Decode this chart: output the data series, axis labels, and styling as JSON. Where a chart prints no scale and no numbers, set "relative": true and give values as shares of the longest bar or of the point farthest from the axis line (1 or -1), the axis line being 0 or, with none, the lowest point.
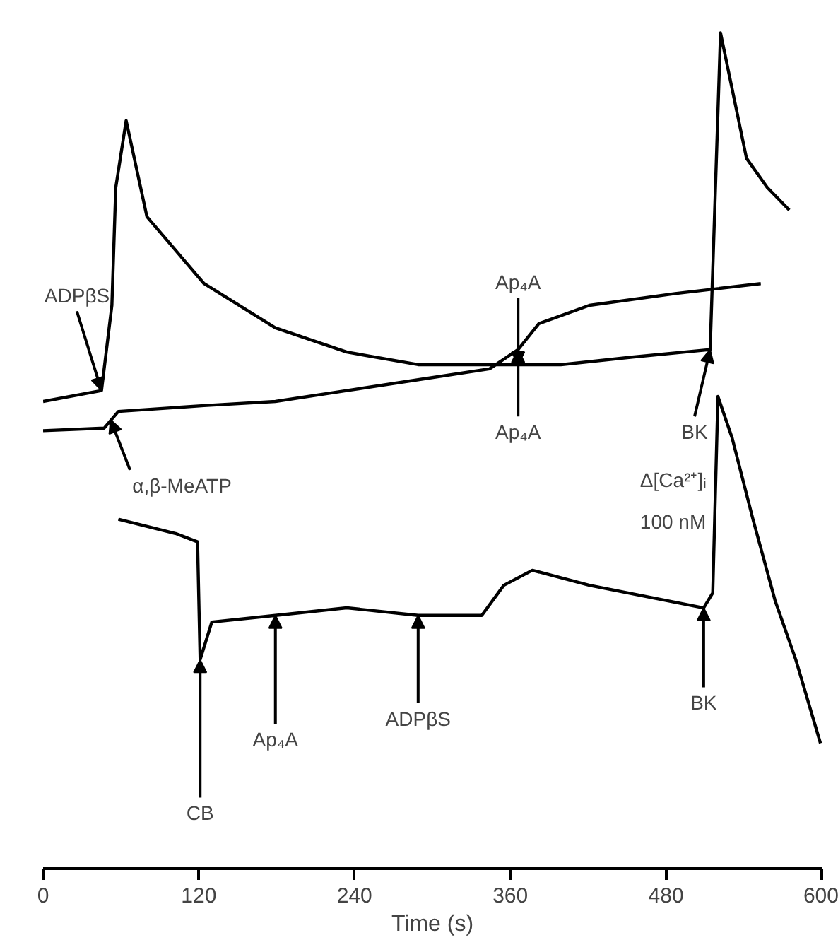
{
  "chart_data": {
    "type": "line",
    "relative": true,
    "xlabel": "Time (s)",
    "xlim": [
      0,
      600
    ],
    "xticks": [
      0,
      120,
      240,
      360,
      480,
      600
    ],
    "tick_labels": "x",
    "grid": false,
    "series": [
      {
        "color": "#000000",
        "x": [
          0,
          45,
          53,
          56,
          64,
          80,
          124,
          179,
          234,
          289,
          344,
          399,
          454,
          514,
          522,
          542,
          558,
          575
        ],
        "values": [
          0.559,
          0.572,
          0.674,
          0.815,
          0.895,
          0.78,
          0.7,
          0.647,
          0.618,
          0.603,
          0.603,
          0.603,
          0.612,
          0.621,
          1.0,
          0.85,
          0.815,
          0.788
        ]
      },
      {
        "color": "#000000",
        "x": [
          0,
          47,
          58,
          124,
          179,
          234,
          289,
          344,
          366,
          382,
          421,
          487,
          553
        ],
        "values": [
          0.524,
          0.527,
          0.547,
          0.554,
          0.559,
          0.572,
          0.585,
          0.598,
          0.621,
          0.652,
          0.674,
          0.688,
          0.7
        ]
      },
      {
        "color": "#000000",
        "x": [
          58,
          102,
          119,
          121,
          130,
          179,
          234,
          289,
          338,
          355,
          377,
          421,
          509,
          516,
          520,
          531,
          547,
          564,
          580,
          599
        ],
        "values": [
          0.418,
          0.401,
          0.391,
          0.25,
          0.295,
          0.303,
          0.312,
          0.303,
          0.303,
          0.339,
          0.357,
          0.339,
          0.312,
          0.33,
          0.565,
          0.515,
          0.418,
          0.321,
          0.25,
          0.15
        ]
      }
    ],
    "annotations": [
      {
        "text": "ADPβS",
        "x": 45,
        "y": 0.572
      },
      {
        "text": "Ap₄A",
        "x": 366,
        "y": 0.603
      },
      {
        "text": "BK",
        "x": 514,
        "y": 0.621
      },
      {
        "text": "α,β-MeATP",
        "x": 52,
        "y": 0.537
      },
      {
        "text": "Ap₄A",
        "x": 366,
        "y": 0.621
      },
      {
        "text": "CB",
        "x": 121,
        "y": 0.25
      },
      {
        "text": "Ap₄A",
        "x": 179,
        "y": 0.303
      },
      {
        "text": "ADPβS",
        "x": 289,
        "y": 0.303
      },
      {
        "text": "BK",
        "x": 509,
        "y": 0.312
      },
      "Δ[Ca²⁺]ᵢ",
      "100 nM"
    ]
  }
}
